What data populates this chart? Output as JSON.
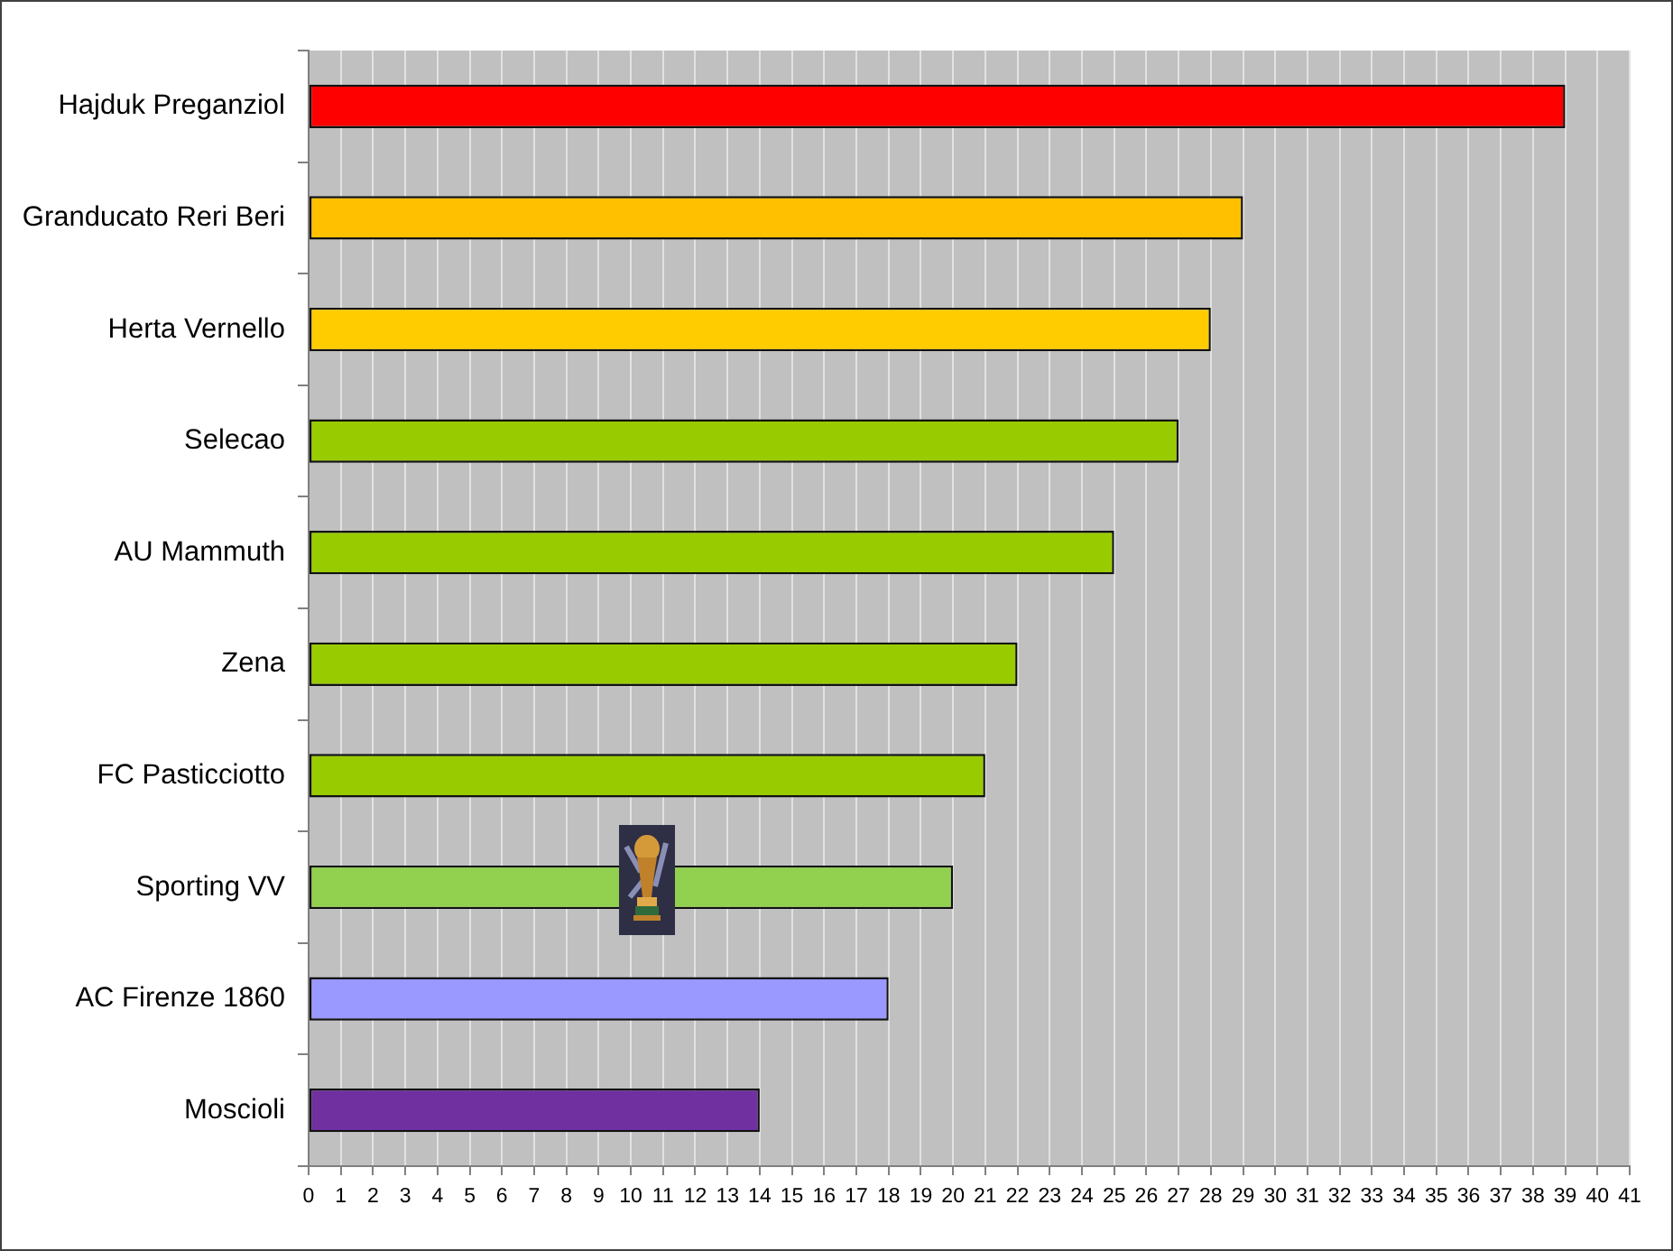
{
  "chart_data": {
    "type": "bar",
    "orientation": "horizontal",
    "categories": [
      "Hajduk Preganziol",
      "Granducato Reri Beri",
      "Herta Vernello",
      "Selecao",
      "AU Mammuth",
      "Zena",
      "FC Pasticciotto",
      "Sporting VV",
      "AC Firenze 1860",
      "Moscioli"
    ],
    "values": [
      39,
      29,
      28,
      27,
      25,
      22,
      21,
      20,
      18,
      14
    ],
    "colors": [
      "#ff0000",
      "#ffc000",
      "#ffcc00",
      "#99cc00",
      "#99cc00",
      "#99cc00",
      "#99cc00",
      "#92d050",
      "#9999ff",
      "#7030a0"
    ],
    "xlim": [
      0,
      41
    ],
    "xticks": [
      0,
      1,
      2,
      3,
      4,
      5,
      6,
      7,
      8,
      9,
      10,
      11,
      12,
      13,
      14,
      15,
      16,
      17,
      18,
      19,
      20,
      21,
      22,
      23,
      24,
      25,
      26,
      27,
      28,
      29,
      30,
      31,
      32,
      33,
      34,
      35,
      36,
      37,
      38,
      39,
      40,
      41
    ],
    "grid": "x"
  }
}
